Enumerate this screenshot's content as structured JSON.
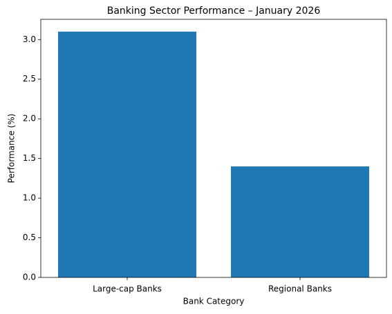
{
  "chart_data": {
    "type": "bar",
    "title": "Banking Sector Performance – January 2026",
    "xlabel": "Bank Category",
    "ylabel": "Performance (%)",
    "categories": [
      "Large-cap Banks",
      "Regional Banks"
    ],
    "values": [
      3.1,
      1.4
    ],
    "color": "#1f77b4",
    "ylim": [
      0,
      3.255
    ],
    "yticks": [
      {
        "value": 0,
        "label": "0.0"
      },
      0.5,
      {
        "value": 1,
        "label": "1.0"
      },
      1.5,
      {
        "value": 2,
        "label": "2.0"
      },
      2.5,
      {
        "value": 3,
        "label": "3.0"
      }
    ],
    "grid": false
  }
}
